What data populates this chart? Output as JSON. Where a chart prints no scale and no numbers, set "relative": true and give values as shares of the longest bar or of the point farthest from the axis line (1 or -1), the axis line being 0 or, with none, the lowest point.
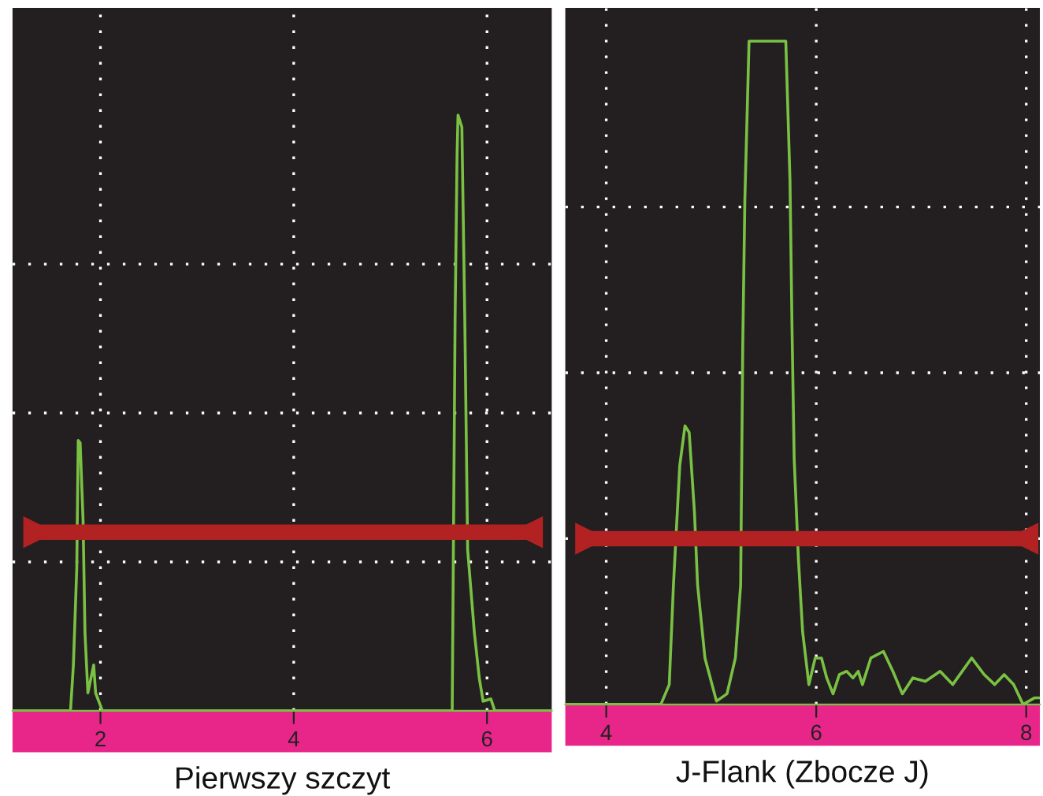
{
  "chart_data": [
    {
      "type": "line",
      "relative": true,
      "xlabel": "Pierwszy szczyt",
      "xlim": [
        1.09,
        6.67
      ],
      "xticks": [
        2,
        4,
        6
      ],
      "tick_labels": "x",
      "grid": true,
      "legend": false,
      "series": [
        {
          "color": "#7ac143",
          "x": [
            1.09,
            1.69,
            1.72,
            1.755,
            1.77,
            1.79,
            1.82,
            1.84,
            1.87,
            1.93,
            1.95,
            2.02,
            5.64,
            5.67,
            5.69,
            5.7,
            5.74,
            5.77,
            5.8,
            5.87,
            5.92,
            5.96,
            6.04,
            6.08,
            6.67
          ],
          "values": [
            0,
            0,
            0.077,
            0.24,
            0.454,
            0.45,
            0.32,
            0.13,
            0.03,
            0.077,
            0.03,
            0,
            0,
            0.66,
            0.93,
            1.0,
            0.98,
            0.66,
            0.27,
            0.13,
            0.055,
            0.016,
            0.02,
            0,
            0
          ]
        },
        {
          "color": "#b22222",
          "marker": "triangle",
          "x": [
            1.36,
            6.42
          ],
          "values": [
            0.3,
            0.3
          ]
        }
      ]
    },
    {
      "type": "line",
      "relative": true,
      "xlabel": "J-Flank (Zbocze J)",
      "xlim": [
        3.61,
        8.13
      ],
      "xticks": [
        4,
        6,
        8
      ],
      "tick_labels": "x",
      "grid": true,
      "legend": false,
      "series": [
        {
          "color": "#7ac143",
          "x": [
            3.61,
            4.52,
            4.6,
            4.64,
            4.7,
            4.75,
            4.79,
            4.84,
            4.87,
            4.94,
            5.05,
            5.15,
            5.23,
            5.28,
            5.3,
            5.32,
            5.36,
            5.71,
            5.75,
            5.77,
            5.79,
            5.83,
            5.87,
            5.93,
            5.99,
            6.05,
            6.1,
            6.16,
            6.22,
            6.29,
            6.35,
            6.4,
            6.44,
            6.52,
            6.64,
            6.73,
            6.82,
            6.92,
            7.04,
            7.18,
            7.3,
            7.48,
            7.6,
            7.7,
            7.79,
            7.88,
            7.97,
            8.08,
            8.13
          ],
          "values": [
            0,
            0,
            0.03,
            0.18,
            0.36,
            0.42,
            0.41,
            0.29,
            0.18,
            0.07,
            0.005,
            0.016,
            0.07,
            0.18,
            0.54,
            0.76,
            1.0,
            1.0,
            0.79,
            0.56,
            0.37,
            0.22,
            0.11,
            0.03,
            0.07,
            0.07,
            0.04,
            0.016,
            0.045,
            0.05,
            0.04,
            0.05,
            0.03,
            0.07,
            0.08,
            0.05,
            0.016,
            0.04,
            0.035,
            0.05,
            0.03,
            0.07,
            0.045,
            0.03,
            0.045,
            0.03,
            0,
            0.01,
            0.01
          ]
        },
        {
          "color": "#b22222",
          "marker": "triangle",
          "x": [
            3.85,
            7.97
          ],
          "values": [
            0.25,
            0.25
          ]
        }
      ]
    }
  ]
}
